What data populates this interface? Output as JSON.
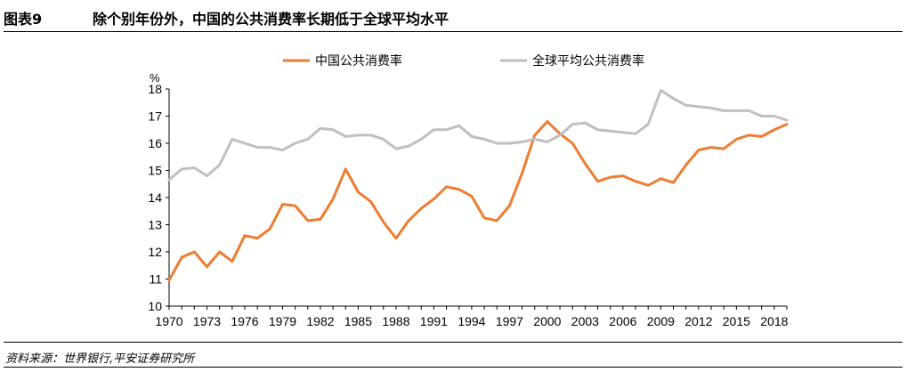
{
  "header": {
    "figure_number": "图表9",
    "title": "除个别年份外，中国的公共消费率长期低于全球平均水平"
  },
  "footer": {
    "source": "资料来源：世界银行,平安证券研究所"
  },
  "colors": {
    "china": "#ED7D31",
    "world": "#BFBFBF",
    "axis": "#000000"
  },
  "chart_data": {
    "type": "line",
    "title": "",
    "xlabel": "",
    "ylabel": "%",
    "ylim": [
      10,
      18
    ],
    "yticks": [
      10,
      11,
      12,
      13,
      14,
      15,
      16,
      17,
      18
    ],
    "xlim": [
      1970,
      2019
    ],
    "xtick_labels": [
      "1970",
      "1973",
      "1976",
      "1979",
      "1982",
      "1985",
      "1988",
      "1991",
      "1994",
      "1997",
      "2000",
      "2003",
      "2006",
      "2009",
      "2012",
      "2015",
      "2018"
    ],
    "grid": false,
    "legend": "top-center",
    "x": [
      1970,
      1971,
      1972,
      1973,
      1974,
      1975,
      1976,
      1977,
      1978,
      1979,
      1980,
      1981,
      1982,
      1983,
      1984,
      1985,
      1986,
      1987,
      1988,
      1989,
      1990,
      1991,
      1992,
      1993,
      1994,
      1995,
      1996,
      1997,
      1998,
      1999,
      2000,
      2001,
      2002,
      2003,
      2004,
      2005,
      2006,
      2007,
      2008,
      2009,
      2010,
      2011,
      2012,
      2013,
      2014,
      2015,
      2016,
      2017,
      2018,
      2019
    ],
    "series": [
      {
        "name": "中国公共消费率",
        "color": "#ED7D31",
        "values": [
          10.95,
          11.8,
          12.0,
          11.45,
          12.0,
          11.65,
          12.6,
          12.5,
          12.85,
          13.75,
          13.7,
          13.15,
          13.2,
          13.95,
          15.05,
          14.2,
          13.85,
          13.1,
          12.5,
          13.15,
          13.6,
          13.95,
          14.4,
          14.3,
          14.05,
          13.25,
          13.15,
          13.7,
          14.9,
          16.3,
          16.8,
          16.35,
          16.0,
          15.25,
          14.6,
          14.75,
          14.8,
          14.6,
          14.45,
          14.7,
          14.55,
          15.2,
          15.75,
          15.85,
          15.8,
          16.15,
          16.3,
          16.25,
          16.5,
          16.7
        ]
      },
      {
        "name": "全球平均公共消费率",
        "color": "#BFBFBF",
        "values": [
          14.65,
          15.05,
          15.1,
          14.8,
          15.2,
          16.15,
          16.0,
          15.85,
          15.85,
          15.75,
          16.0,
          16.15,
          16.55,
          16.5,
          16.25,
          16.3,
          16.3,
          16.15,
          15.8,
          15.9,
          16.15,
          16.5,
          16.5,
          16.65,
          16.25,
          16.15,
          16.0,
          16.0,
          16.05,
          16.15,
          16.05,
          16.3,
          16.7,
          16.75,
          16.5,
          16.45,
          16.4,
          16.35,
          16.7,
          17.95,
          17.65,
          17.4,
          17.35,
          17.3,
          17.2,
          17.2,
          17.2,
          17.0,
          17.0,
          16.85
        ]
      }
    ]
  }
}
